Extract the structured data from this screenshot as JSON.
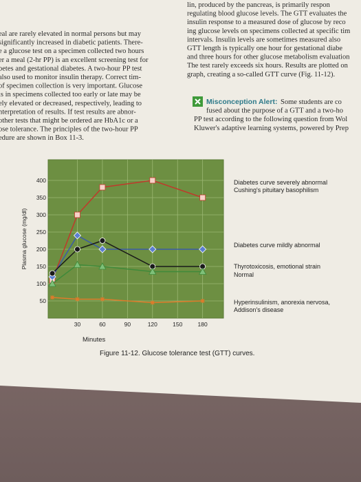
{
  "page": {
    "left_column": [
      "eal are rarely elevated in normal persons but may",
      "significantly increased in diabetic patients. There-",
      "e a glucose test on a specimen collected two hours",
      "er a meal (2-hr PP) is an excellent screening test for",
      "betes and gestational diabetes. A two-hour PP test",
      "also used to monitor insulin therapy. Correct tim-",
      "of specimen collection is very important. Glucose",
      "ls in specimens collected too early or late may be",
      "ely elevated or decreased, respectively, leading to",
      "nterpretation of results. If test results are abnor-",
      "other tests that might be ordered are HbA1c or a",
      "ose tolerance. The principles of the two-hour PP",
      "edure are shown in Box 11-3."
    ],
    "right_column": [
      "lin, produced by the pancreas, is primarily respon",
      "regulating blood glucose levels. The GTT evaluates the",
      "insulin response to a measured dose of glucose by reco",
      "ing glucose levels on specimens collected at specific tim",
      "intervals. Insulin levels are sometimes measured also",
      "GTT length is typically one hour for gestational diabe",
      "and three hours for other glucose metabolism evaluation",
      "The test rarely exceeds six hours. Results are plotted on",
      "graph, creating a so-called GTT curve (Fig. 11-12)."
    ],
    "alert": {
      "title": "Misconception Alert:",
      "lines": [
        "Some students are co",
        "fused about the purpose of a GTT and a two-ho",
        "PP test according to the following question from Wol",
        "Kluwer's adaptive learning systems, powered by Prep"
      ]
    }
  },
  "chart_data": {
    "type": "line",
    "caption": "Figure 11-12. Glucose tolerance test (GTT) curves.",
    "x_label": "Minutes",
    "y_label": "Plasma glucose (mg/dl)",
    "x": [
      0,
      30,
      60,
      120,
      180
    ],
    "xlim": [
      -5,
      205
    ],
    "xticks": [
      30,
      60,
      90,
      120,
      150,
      180
    ],
    "ylim": [
      0,
      460
    ],
    "yticks": [
      50,
      100,
      150,
      200,
      250,
      300,
      350,
      400
    ],
    "grid": true,
    "series": [
      {
        "color": "#c0392b",
        "marker": "square",
        "values": [
          110,
          300,
          380,
          400,
          350
        ],
        "annotation": [
          "Diabetes curve severely abnormal",
          "Cushing's pituitary basophilism"
        ]
      },
      {
        "color": "#3b5ba8",
        "marker": "diamond",
        "values": [
          120,
          240,
          200,
          200,
          200
        ],
        "annotation": [
          "Diabetes curve mildly abnormal"
        ]
      },
      {
        "color": "#1a1a1a",
        "marker": "circle",
        "values": [
          130,
          200,
          225,
          150,
          150
        ],
        "annotation": [
          "Thyrotoxicosis, emotional strain"
        ]
      },
      {
        "color": "#3f8a3a",
        "marker": "triangle",
        "values": [
          100,
          155,
          150,
          135,
          135
        ],
        "annotation": [
          "Normal"
        ]
      },
      {
        "color": "#e07b2a",
        "marker": "star",
        "values": [
          60,
          55,
          55,
          45,
          50
        ],
        "annotation": [
          "Hyperinsulinism, anorexia nervosa,",
          "Addison's disease"
        ]
      }
    ]
  }
}
